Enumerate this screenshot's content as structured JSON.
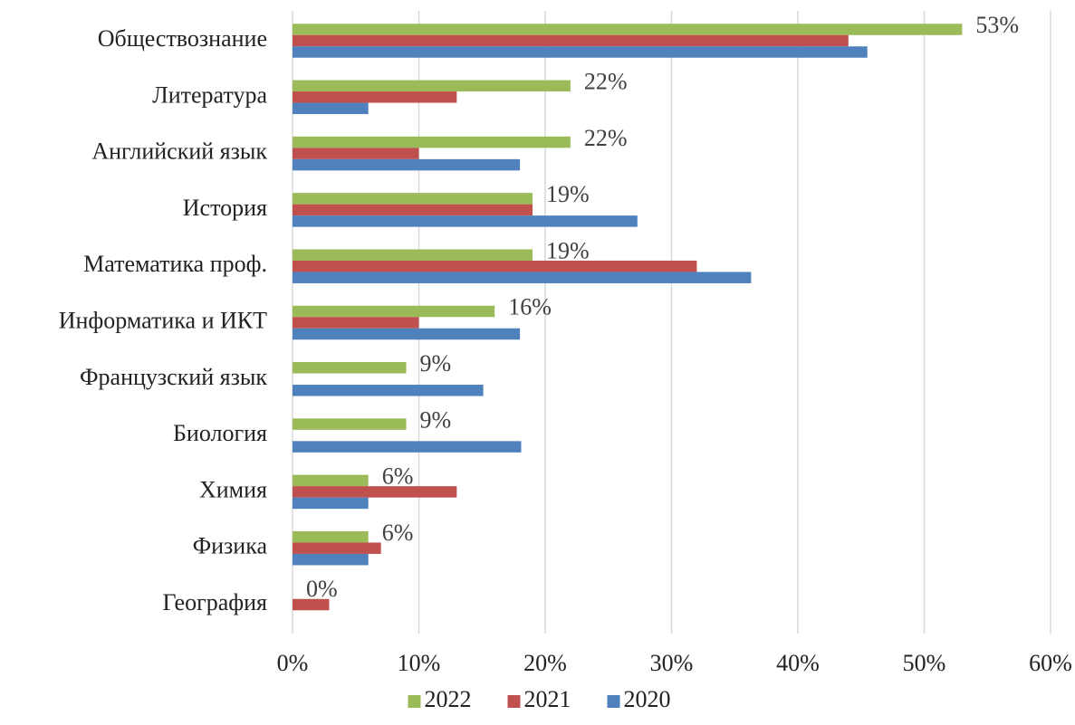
{
  "chart_data": {
    "type": "bar",
    "orientation": "horizontal",
    "categories": [
      "Обществознание",
      "Литература",
      "Английский язык",
      "История",
      "Математика проф.",
      "Информатика и ИКТ",
      "Французский язык",
      "Биология",
      "Химия",
      "Физика",
      "География"
    ],
    "series": [
      {
        "name": "2022",
        "color": "#9bbb59",
        "values": [
          53,
          22,
          22,
          19,
          19,
          16,
          9,
          9,
          6,
          6,
          0
        ],
        "value_labels": [
          "53%",
          "22%",
          "22%",
          "19%",
          "19%",
          "16%",
          "9%",
          "9%",
          "6%",
          "6%",
          "0%"
        ]
      },
      {
        "name": "2021",
        "color": "#c0504d",
        "values": [
          44,
          13,
          10,
          19,
          32,
          10,
          0,
          0,
          13,
          7,
          2.9
        ]
      },
      {
        "name": "2020",
        "color": "#4f81bd",
        "values": [
          45.5,
          6,
          18,
          27.3,
          36.3,
          18,
          15.1,
          18.1,
          6,
          6,
          0
        ]
      }
    ],
    "xlim": [
      0,
      60
    ],
    "xticks": [
      {
        "value": 0,
        "label": "0%"
      },
      {
        "value": 10,
        "label": "10%"
      },
      {
        "value": 20,
        "label": "20%"
      },
      {
        "value": 30,
        "label": "30%"
      },
      {
        "value": 40,
        "label": "40%"
      },
      {
        "value": 50,
        "label": "50%"
      },
      {
        "value": 60,
        "label": "60%"
      }
    ],
    "grid": true,
    "legend": "bottom"
  }
}
